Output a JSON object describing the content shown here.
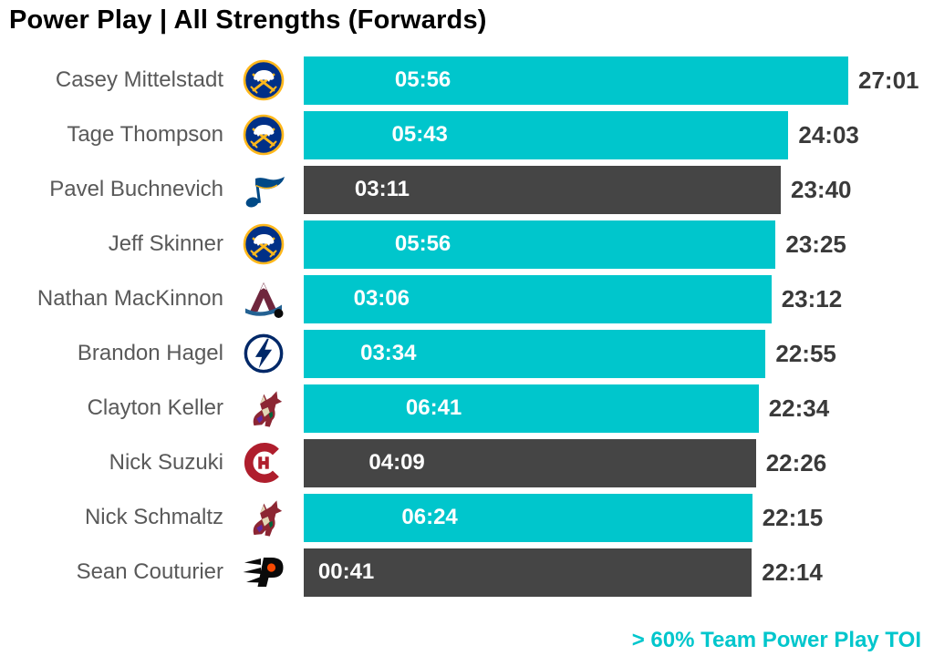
{
  "title": "Power Play | All Strengths (Forwards)",
  "colors": {
    "highlight": "#00C6CC",
    "default": "#454545",
    "name_text": "#595959",
    "total_text": "#3A3A3A",
    "title_text": "#000000",
    "bar_value_text": "#FFFFFF"
  },
  "legend": {
    "label": "> 60% Team Power Play TOI"
  },
  "chart_data": {
    "type": "bar",
    "orientation": "horizontal",
    "title": "Power Play | All Strengths (Forwards)",
    "legend_note": "> 60% Team Power Play TOI",
    "legend_meaning": "teal bars = player had more than 60% of team power play time on ice",
    "inside_bar_values": "power play TOI (mm:ss)",
    "bar_length_values": "total TOI (mm:ss)",
    "axis_max_seconds": 1621,
    "grid": false,
    "players": [
      {
        "name": "Casey Mittelstadt",
        "team_logo": "sabres-logo",
        "pp_toi": "05:56",
        "pp_seconds": 356,
        "total_toi": "27:01",
        "total_seconds": 1621,
        "highlight": true
      },
      {
        "name": "Tage Thompson",
        "team_logo": "sabres-logo",
        "pp_toi": "05:43",
        "pp_seconds": 343,
        "total_toi": "24:03",
        "total_seconds": 1443,
        "highlight": true
      },
      {
        "name": "Pavel Buchnevich",
        "team_logo": "blues-logo",
        "pp_toi": "03:11",
        "pp_seconds": 191,
        "total_toi": "23:40",
        "total_seconds": 1420,
        "highlight": false
      },
      {
        "name": "Jeff Skinner",
        "team_logo": "sabres-logo",
        "pp_toi": "05:56",
        "pp_seconds": 356,
        "total_toi": "23:25",
        "total_seconds": 1405,
        "highlight": true
      },
      {
        "name": "Nathan MacKinnon",
        "team_logo": "avalanche-logo",
        "pp_toi": "03:06",
        "pp_seconds": 186,
        "total_toi": "23:12",
        "total_seconds": 1392,
        "highlight": true
      },
      {
        "name": "Brandon Hagel",
        "team_logo": "lightning-logo",
        "pp_toi": "03:34",
        "pp_seconds": 214,
        "total_toi": "22:55",
        "total_seconds": 1375,
        "highlight": true
      },
      {
        "name": "Clayton Keller",
        "team_logo": "coyotes-logo",
        "pp_toi": "06:41",
        "pp_seconds": 401,
        "total_toi": "22:34",
        "total_seconds": 1354,
        "highlight": true
      },
      {
        "name": "Nick Suzuki",
        "team_logo": "canadiens-logo",
        "pp_toi": "04:09",
        "pp_seconds": 249,
        "total_toi": "22:26",
        "total_seconds": 1346,
        "highlight": false
      },
      {
        "name": "Nick Schmaltz",
        "team_logo": "coyotes-logo",
        "pp_toi": "06:24",
        "pp_seconds": 384,
        "total_toi": "22:15",
        "total_seconds": 1335,
        "highlight": true
      },
      {
        "name": "Sean Couturier",
        "team_logo": "flyers-logo",
        "pp_toi": "00:41",
        "pp_seconds": 41,
        "total_toi": "22:14",
        "total_seconds": 1334,
        "highlight": false
      }
    ]
  }
}
